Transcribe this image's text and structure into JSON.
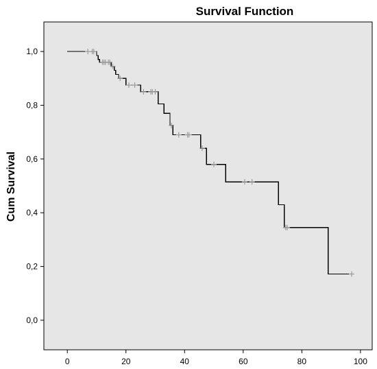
{
  "chart_data": {
    "type": "line",
    "title": "Survival Function",
    "xlabel": "",
    "ylabel": "Cum Survival",
    "xlim": [
      -8,
      104
    ],
    "ylim": [
      -0.11,
      1.11
    ],
    "x_ticks": [
      0,
      20,
      40,
      60,
      80,
      100
    ],
    "x_tick_labels": [
      "0",
      "20",
      "40",
      "60",
      "80",
      "100"
    ],
    "y_ticks": [
      0.0,
      0.2,
      0.4,
      0.6,
      0.8,
      1.0
    ],
    "y_tick_labels": [
      "0,0",
      "0,2",
      "0,4",
      "0,6",
      "0,8",
      "1,0"
    ],
    "grid": false,
    "legend": "none",
    "series": [
      {
        "step": [
          {
            "x": 0,
            "y": 1.0
          },
          {
            "x": 10,
            "y": 0.985
          },
          {
            "x": 10.5,
            "y": 0.97
          },
          {
            "x": 11,
            "y": 0.96
          },
          {
            "x": 15,
            "y": 0.945
          },
          {
            "x": 16,
            "y": 0.93
          },
          {
            "x": 16.5,
            "y": 0.915
          },
          {
            "x": 17.5,
            "y": 0.9
          },
          {
            "x": 20,
            "y": 0.875
          },
          {
            "x": 25,
            "y": 0.85
          },
          {
            "x": 31,
            "y": 0.805
          },
          {
            "x": 33,
            "y": 0.77
          },
          {
            "x": 35,
            "y": 0.725
          },
          {
            "x": 36,
            "y": 0.69
          },
          {
            "x": 45.5,
            "y": 0.64
          },
          {
            "x": 47.5,
            "y": 0.58
          },
          {
            "x": 54,
            "y": 0.515
          },
          {
            "x": 72,
            "y": 0.43
          },
          {
            "x": 74,
            "y": 0.345
          },
          {
            "x": 89,
            "y": 0.172
          },
          {
            "x": 97,
            "y": 0.172
          }
        ],
        "censored": [
          {
            "x": 7,
            "y": 1.0
          },
          {
            "x": 8.5,
            "y": 1.0
          },
          {
            "x": 9,
            "y": 1.0
          },
          {
            "x": 12,
            "y": 0.96
          },
          {
            "x": 12.5,
            "y": 0.96
          },
          {
            "x": 13,
            "y": 0.96
          },
          {
            "x": 14,
            "y": 0.96
          },
          {
            "x": 14.5,
            "y": 0.96
          },
          {
            "x": 15.5,
            "y": 0.945
          },
          {
            "x": 18,
            "y": 0.9
          },
          {
            "x": 21,
            "y": 0.875
          },
          {
            "x": 23,
            "y": 0.875
          },
          {
            "x": 26,
            "y": 0.85
          },
          {
            "x": 28.5,
            "y": 0.85
          },
          {
            "x": 29,
            "y": 0.85
          },
          {
            "x": 30,
            "y": 0.85
          },
          {
            "x": 35.5,
            "y": 0.725
          },
          {
            "x": 38,
            "y": 0.69
          },
          {
            "x": 41,
            "y": 0.69
          },
          {
            "x": 41.5,
            "y": 0.69
          },
          {
            "x": 46,
            "y": 0.64
          },
          {
            "x": 50,
            "y": 0.58
          },
          {
            "x": 60.5,
            "y": 0.515
          },
          {
            "x": 63,
            "y": 0.515
          },
          {
            "x": 74.5,
            "y": 0.345
          },
          {
            "x": 75,
            "y": 0.345
          },
          {
            "x": 97,
            "y": 0.172
          }
        ]
      }
    ],
    "colors": {
      "plot_background": "#e6e6e6",
      "line": "#000000",
      "censor_marker": "#9a9a9a",
      "frame": "#000000"
    }
  }
}
